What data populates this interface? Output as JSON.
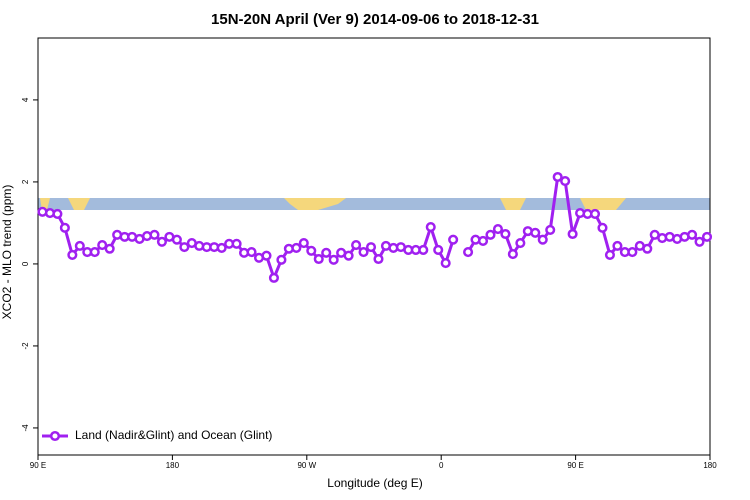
{
  "chart_data": {
    "type": "line",
    "title": "15N-20N April (Ver 9)   2014-09-06 to 2018-12-31",
    "x_label": "Longitude (deg E)",
    "y_label": "XCO2 - MLO trend (ppm)",
    "x": [
      93,
      98,
      103,
      108,
      113,
      118,
      123,
      128,
      133,
      138,
      143,
      148,
      153,
      158,
      163,
      168,
      173,
      178,
      183,
      188,
      193,
      198,
      203,
      208,
      213,
      218,
      223,
      228,
      233,
      238,
      243,
      248,
      253,
      258,
      263,
      268,
      273,
      278,
      283,
      288,
      293,
      298,
      303,
      308,
      313,
      318,
      323,
      328,
      333,
      338,
      343,
      348,
      353,
      358,
      363,
      368,
      373,
      378,
      383,
      388,
      393,
      398,
      403,
      408,
      413,
      418,
      423,
      428,
      433,
      438,
      443,
      448,
      453,
      458,
      463,
      468,
      473,
      478,
      483,
      488,
      493,
      498,
      503,
      508,
      513,
      518,
      523,
      528,
      533,
      538
    ],
    "series": [
      {
        "name": "Land (Nadir&Glint) and Ocean (Glint)",
        "color": "#a020f0",
        "values": [
          1.27,
          1.24,
          1.22,
          0.88,
          0.22,
          0.44,
          0.29,
          0.29,
          0.46,
          0.37,
          0.71,
          0.66,
          0.66,
          0.61,
          0.68,
          0.71,
          0.54,
          0.66,
          0.59,
          0.41,
          0.51,
          0.44,
          0.41,
          0.41,
          0.39,
          0.49,
          0.49,
          0.27,
          0.29,
          0.15,
          0.2,
          -0.34,
          0.1,
          0.37,
          0.39,
          0.51,
          0.32,
          0.12,
          0.27,
          0.1,
          0.27,
          0.2,
          0.46,
          0.29,
          0.41,
          0.12,
          0.44,
          0.39,
          0.41,
          0.34,
          0.34,
          0.34,
          0.9,
          0.34,
          0.02,
          0.59,
          null,
          0.29,
          0.59,
          0.56,
          0.71,
          0.85,
          0.73,
          0.24,
          0.51,
          0.8,
          0.76,
          0.59,
          0.83,
          2.12,
          2.02,
          0.73,
          1.24,
          1.22,
          1.22,
          0.88,
          0.22,
          0.44,
          0.29,
          0.29,
          0.44,
          0.37,
          0.71,
          0.63,
          0.66,
          0.61,
          0.66,
          0.71,
          0.54,
          0.66
        ]
      }
    ],
    "xlim": [
      90,
      540
    ],
    "xticks": [
      {
        "value": 90,
        "label": "90 E"
      },
      180,
      {
        "value": 270,
        "label": "90 W"
      },
      {
        "value": 360,
        "label": "0"
      },
      {
        "value": 450,
        "label": "90 E"
      },
      {
        "value": 540,
        "label": "180"
      }
    ],
    "ylim": [
      -4.66,
      5.51
    ],
    "yticks": [
      -4,
      -2,
      0,
      2,
      4
    ],
    "legend_position": "bottom-left"
  }
}
